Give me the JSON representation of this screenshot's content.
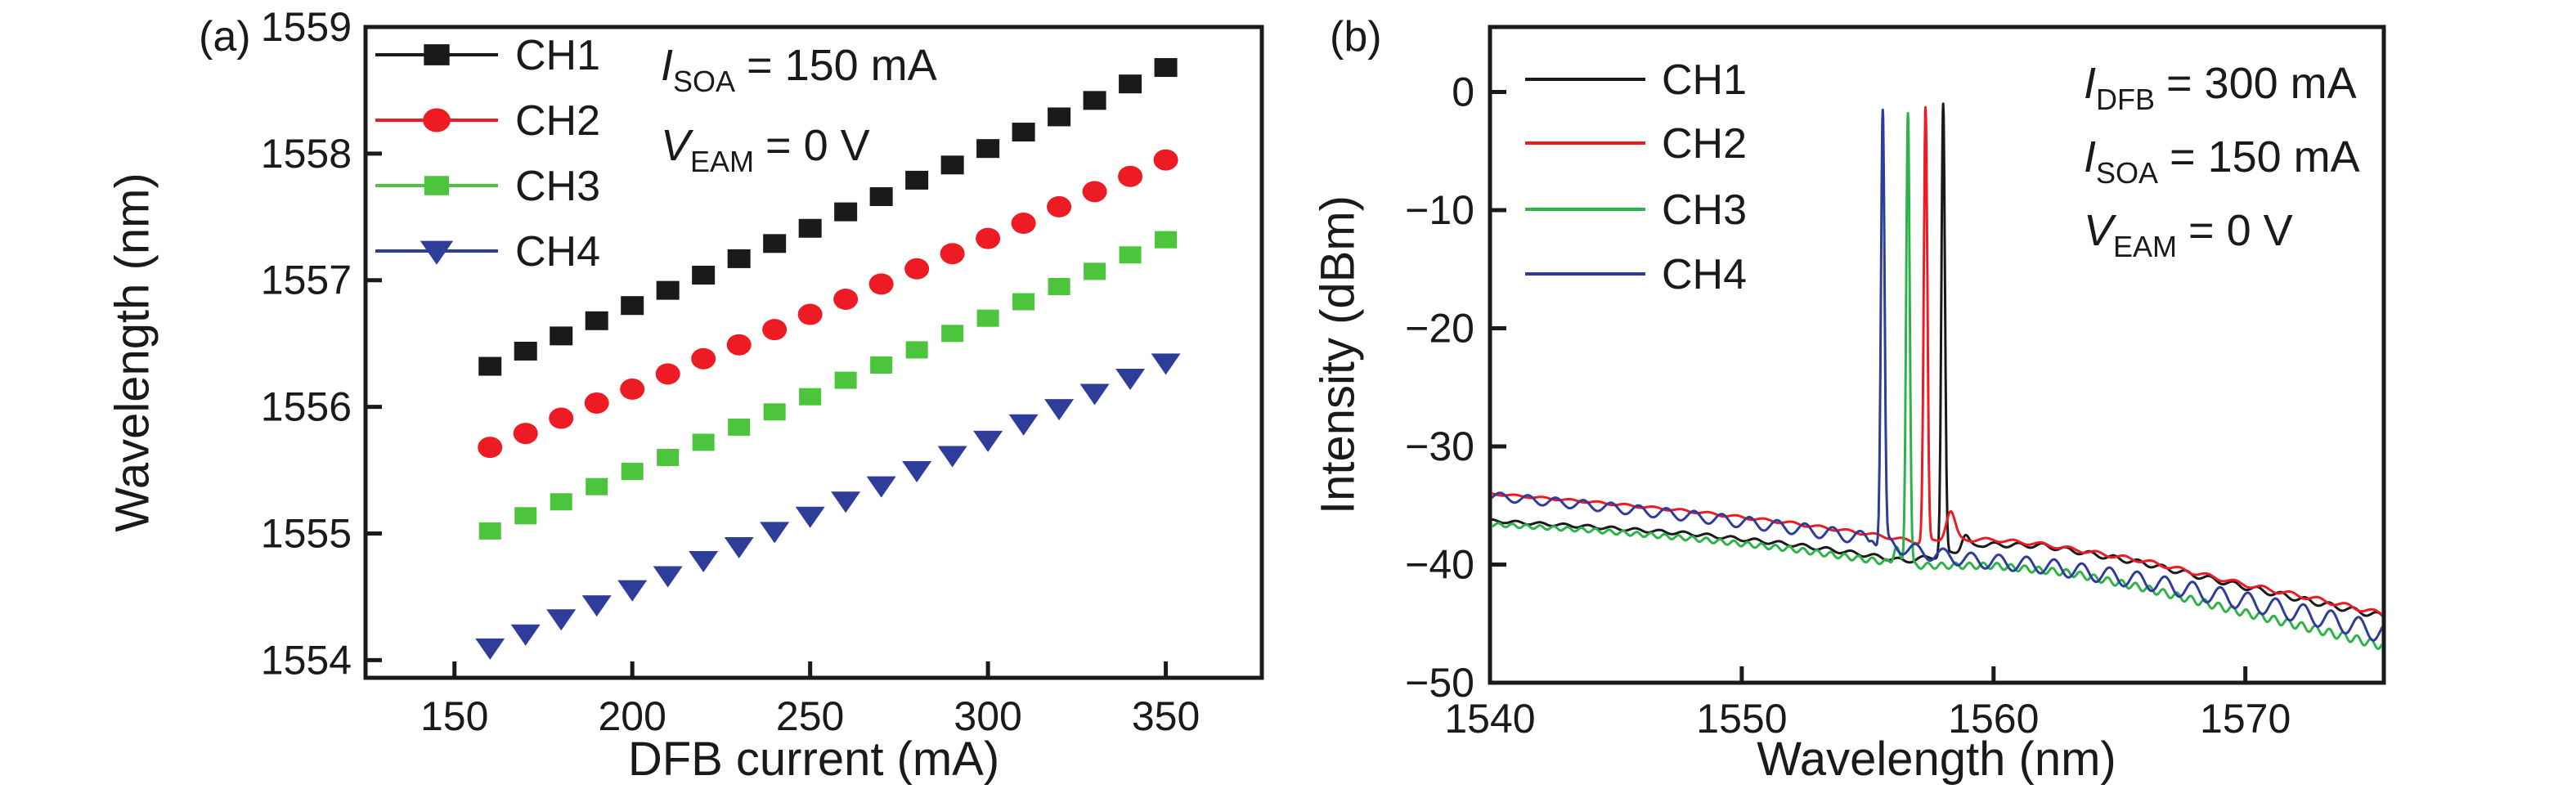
{
  "figure_background": "#ffffff",
  "ink_color": "#1a1a1a",
  "chart_data": [
    {
      "type": "scatter",
      "panel_tag": "(a)",
      "xlabel": "DFB current (mA)",
      "ylabel": "Wavelength (nm)",
      "xlim": [
        125,
        377
      ],
      "ylim": [
        1553.86,
        1559
      ],
      "xticks": [
        150,
        200,
        250,
        300,
        350
      ],
      "yticks": [
        1554,
        1555,
        1556,
        1557,
        1558,
        1559
      ],
      "grid": false,
      "legend_position": "top-left-inside",
      "x_mA": [
        160,
        170,
        180,
        190,
        200,
        210,
        220,
        230,
        240,
        250,
        260,
        270,
        280,
        290,
        300,
        310,
        320,
        330,
        340,
        350
      ],
      "series": [
        {
          "name": "CH1",
          "marker": "square",
          "color": "#1a1a1a",
          "values": [
            1556.32,
            1556.44,
            1556.56,
            1556.68,
            1556.8,
            1556.92,
            1557.04,
            1557.17,
            1557.29,
            1557.41,
            1557.54,
            1557.66,
            1557.79,
            1557.91,
            1558.04,
            1558.17,
            1558.29,
            1558.42,
            1558.55,
            1558.68
          ]
        },
        {
          "name": "CH2",
          "marker": "circle",
          "color": "#ed1c24",
          "values": [
            1555.68,
            1555.79,
            1555.91,
            1556.03,
            1556.14,
            1556.26,
            1556.38,
            1556.49,
            1556.61,
            1556.73,
            1556.85,
            1556.97,
            1557.09,
            1557.21,
            1557.33,
            1557.45,
            1557.58,
            1557.7,
            1557.82,
            1557.95
          ]
        },
        {
          "name": "CH3",
          "marker": "square",
          "color": "#4cc43c",
          "values": [
            1555.02,
            1555.14,
            1555.25,
            1555.37,
            1555.49,
            1555.6,
            1555.72,
            1555.84,
            1555.96,
            1556.08,
            1556.21,
            1556.33,
            1556.45,
            1556.58,
            1556.7,
            1556.83,
            1556.95,
            1557.07,
            1557.2,
            1557.32
          ]
        },
        {
          "name": "CH4",
          "marker": "triangle-down",
          "color": "#2e3d99",
          "values": [
            1554.1,
            1554.21,
            1554.33,
            1554.44,
            1554.56,
            1554.67,
            1554.79,
            1554.9,
            1555.02,
            1555.14,
            1555.26,
            1555.38,
            1555.5,
            1555.62,
            1555.74,
            1555.87,
            1555.99,
            1556.11,
            1556.23,
            1556.35
          ]
        }
      ],
      "annotations": [
        {
          "sym": "I",
          "sub": "SOA",
          "rest": "= 150 mA"
        },
        {
          "sym": "V",
          "sub": "EAM",
          "rest": "= 0 V"
        }
      ]
    },
    {
      "type": "line",
      "panel_tag": "(b)",
      "xlabel": "Wavelength (nm)",
      "ylabel": "Intensity (dBm)",
      "xlim": [
        1540,
        1575.5
      ],
      "ylim": [
        -50,
        5.5
      ],
      "xticks": [
        1540,
        1550,
        1560,
        1570
      ],
      "yticks": [
        0,
        -10,
        -20,
        -30,
        -40,
        -50
      ],
      "grid": false,
      "legend_position": "top-left-inside",
      "series": [
        {
          "name": "CH1",
          "color": "#1a1a1a",
          "peak_nm": 1558.0,
          "peak_dbm": -1.0,
          "ripple": {
            "amp0": 0.12,
            "amp1": 0.25,
            "period": 0.95,
            "phase": 1.0
          },
          "side_bumps": [
            [
              1558.9,
              -37.5,
              0.2
            ]
          ],
          "baseline": [
            [
              1540,
              -36.3
            ],
            [
              1544,
              -36.8
            ],
            [
              1548,
              -37.4
            ],
            [
              1552,
              -38.3
            ],
            [
              1555,
              -39.2
            ],
            [
              1556.5,
              -39.7
            ],
            [
              1558,
              -39.2
            ],
            [
              1559.5,
              -38.3
            ],
            [
              1562,
              -38.4
            ],
            [
              1566,
              -39.9
            ],
            [
              1570,
              -41.9
            ],
            [
              1573,
              -43.3
            ],
            [
              1575.5,
              -44.4
            ]
          ]
        },
        {
          "name": "CH2",
          "color": "#ed1c24",
          "peak_nm": 1557.3,
          "peak_dbm": -1.3,
          "ripple": {
            "amp0": 0.08,
            "amp1": 0.2,
            "period": 1.1,
            "phase": 2.2
          },
          "side_bumps": [
            [
              1558.3,
              -35.5,
              0.25
            ]
          ],
          "baseline": [
            [
              1540,
              -34.0
            ],
            [
              1544,
              -34.7
            ],
            [
              1548,
              -35.5
            ],
            [
              1552,
              -36.5
            ],
            [
              1555,
              -37.4
            ],
            [
              1557,
              -38.1
            ],
            [
              1558.5,
              -37.9
            ],
            [
              1560,
              -37.9
            ],
            [
              1562,
              -38.3
            ],
            [
              1566,
              -39.7
            ],
            [
              1570,
              -41.7
            ],
            [
              1573,
              -43.0
            ],
            [
              1575.5,
              -44.2
            ]
          ]
        },
        {
          "name": "CH3",
          "color": "#2eb34a",
          "peak_nm": 1556.6,
          "peak_dbm": -1.8,
          "ripple": {
            "amp0": 0.15,
            "amp1": 0.35,
            "period": 0.55,
            "phase": 4.0
          },
          "side_bumps": [
            [
              1556.15,
              -38.5,
              0.15
            ]
          ],
          "baseline": [
            [
              1540,
              -36.6
            ],
            [
              1544,
              -37.1
            ],
            [
              1548,
              -37.8
            ],
            [
              1552,
              -38.7
            ],
            [
              1555,
              -39.6
            ],
            [
              1557,
              -40.1
            ],
            [
              1560,
              -40.1
            ],
            [
              1563,
              -40.7
            ],
            [
              1566,
              -42.0
            ],
            [
              1570,
              -44.1
            ],
            [
              1573,
              -45.6
            ],
            [
              1575.5,
              -46.9
            ]
          ]
        },
        {
          "name": "CH4",
          "color": "#2e3d99",
          "peak_nm": 1555.6,
          "peak_dbm": -1.5,
          "ripple": {
            "amp0": 0.35,
            "amp1": 0.85,
            "period": 1.1,
            "phase": 5.5
          },
          "side_bumps": [
            [
              1555.15,
              -38.0,
              0.15
            ]
          ],
          "baseline": [
            [
              1540,
              -34.2
            ],
            [
              1544,
              -35.0
            ],
            [
              1548,
              -35.9
            ],
            [
              1552,
              -36.9
            ],
            [
              1555,
              -37.8
            ],
            [
              1557,
              -38.9
            ],
            [
              1559,
              -39.6
            ],
            [
              1562,
              -40.1
            ],
            [
              1566,
              -41.4
            ],
            [
              1570,
              -43.1
            ],
            [
              1573,
              -44.5
            ],
            [
              1575.5,
              -45.8
            ]
          ]
        }
      ],
      "annotations": [
        {
          "sym": "I",
          "sub": "DFB",
          "rest": "= 300 mA"
        },
        {
          "sym": "I",
          "sub": "SOA",
          "rest": "= 150 mA"
        },
        {
          "sym": "V",
          "sub": "EAM",
          "rest": "= 0 V"
        }
      ]
    }
  ]
}
